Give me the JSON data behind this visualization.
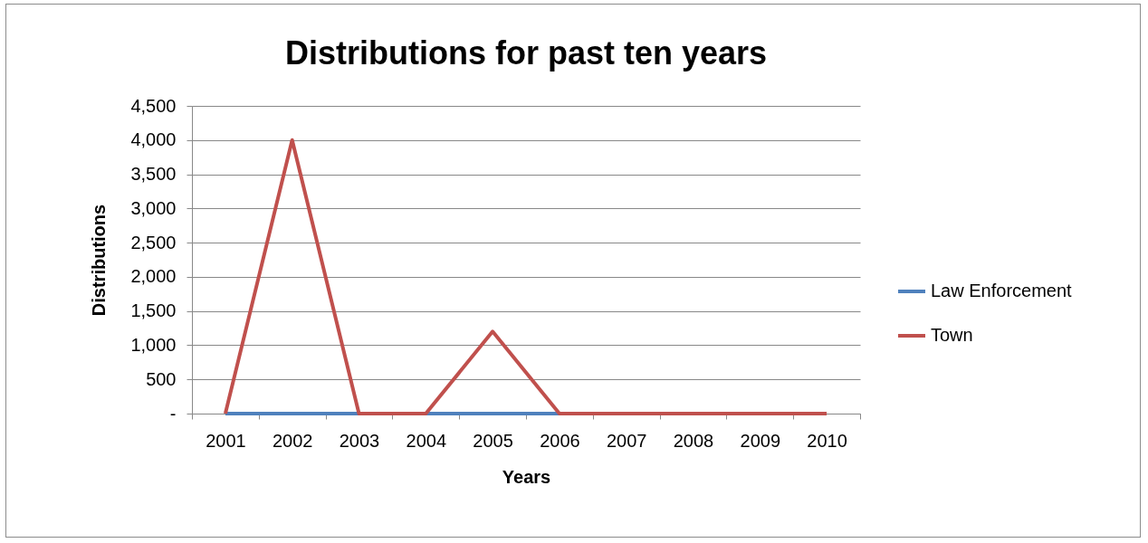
{
  "chart_data": {
    "type": "line",
    "title": "Distributions for past ten years",
    "xlabel": "Years",
    "ylabel": "Distributions",
    "categories": [
      "2001",
      "2002",
      "2003",
      "2004",
      "2005",
      "2006",
      "2007",
      "2008",
      "2009",
      "2010"
    ],
    "series": [
      {
        "name": "Law Enforcement",
        "color": "#4f81bd",
        "values": [
          0,
          0,
          0,
          0,
          0,
          0,
          0,
          null,
          null,
          null
        ]
      },
      {
        "name": "Town",
        "color": "#c0504d",
        "values": [
          0,
          4000,
          0,
          0,
          1200,
          0,
          0,
          0,
          0,
          0
        ]
      }
    ],
    "ylim": [
      0,
      4500
    ],
    "yticks": [
      {
        "value": 0,
        "label": "-"
      },
      {
        "value": 500,
        "label": "500"
      },
      {
        "value": 1000,
        "label": "1,000"
      },
      {
        "value": 1500,
        "label": "1,500"
      },
      {
        "value": 2000,
        "label": "2,000"
      },
      {
        "value": 2500,
        "label": "2,500"
      },
      {
        "value": 3000,
        "label": "3,000"
      },
      {
        "value": 3500,
        "label": "3,500"
      },
      {
        "value": 4000,
        "label": "4,000"
      },
      {
        "value": 4500,
        "label": "4,500"
      }
    ],
    "grid": "y",
    "legend": "right",
    "marker": "none",
    "line_style": "solid"
  }
}
